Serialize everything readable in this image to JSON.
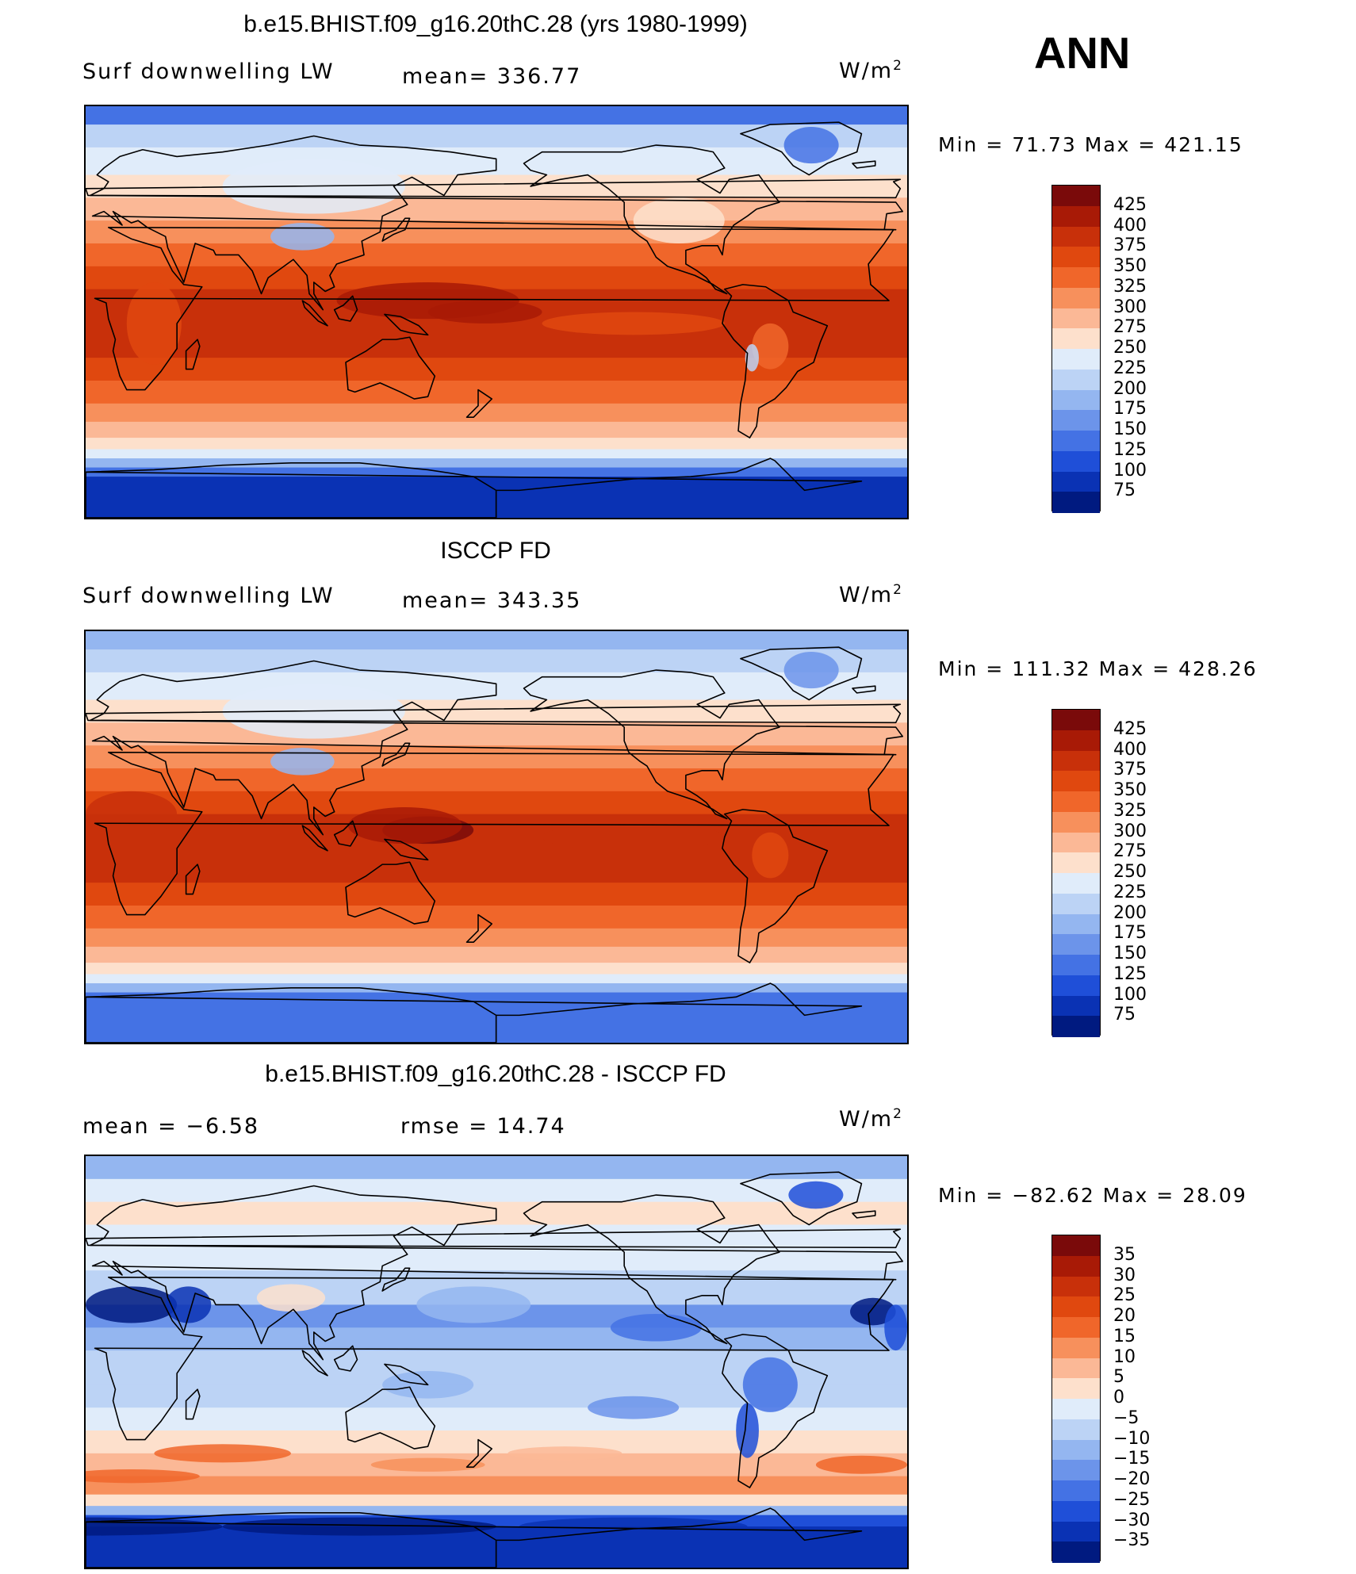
{
  "season": "ANN",
  "panels": [
    {
      "title": "b.e15.BHIST.f09_g16.20thC.28 (yrs 1980-1999)",
      "left_label": "Surf  downwelling  LW",
      "center_label": "mean=  336.77",
      "units_base": "W/m",
      "units_exp": "2",
      "minmax": "Min  =    71.73  Max  =  421.15",
      "colorbar_labels": [
        "425",
        "400",
        "375",
        "350",
        "325",
        "300",
        "275",
        "250",
        "225",
        "200",
        "175",
        "150",
        "125",
        "100",
        "75"
      ]
    },
    {
      "title": "ISCCP FD",
      "left_label": "Surf  downwelling  LW",
      "center_label": "mean=  343.35",
      "units_base": "W/m",
      "units_exp": "2",
      "minmax": "Min  =  111.32  Max  =  428.26",
      "colorbar_labels": [
        "425",
        "400",
        "375",
        "350",
        "325",
        "300",
        "275",
        "250",
        "225",
        "200",
        "175",
        "150",
        "125",
        "100",
        "75"
      ]
    },
    {
      "title": "b.e15.BHIST.f09_g16.20thC.28 - ISCCP FD",
      "left_label": "mean  =    −6.58",
      "center_label": "rmse  =    14.74",
      "units_base": "W/m",
      "units_exp": "2",
      "minmax": "Min  =  −82.62  Max  =    28.09",
      "colorbar_labels": [
        "35",
        "30",
        "25",
        "20",
        "15",
        "10",
        "5",
        "0",
        "−5",
        "−10",
        "−15",
        "−20",
        "−25",
        "−30",
        "−35"
      ]
    }
  ],
  "colors": {
    "palette": [
      "#7a0a0a",
      "#a81a06",
      "#c8300a",
      "#e0480f",
      "#f0662a",
      "#f7905c",
      "#fbb896",
      "#fde0cc",
      "#e0ecfa",
      "#bcd3f5",
      "#94b6f0",
      "#6c94ea",
      "#4472e4",
      "#1f4fd8",
      "#0a32b4",
      "#001a80"
    ],
    "border": "#000000"
  }
}
